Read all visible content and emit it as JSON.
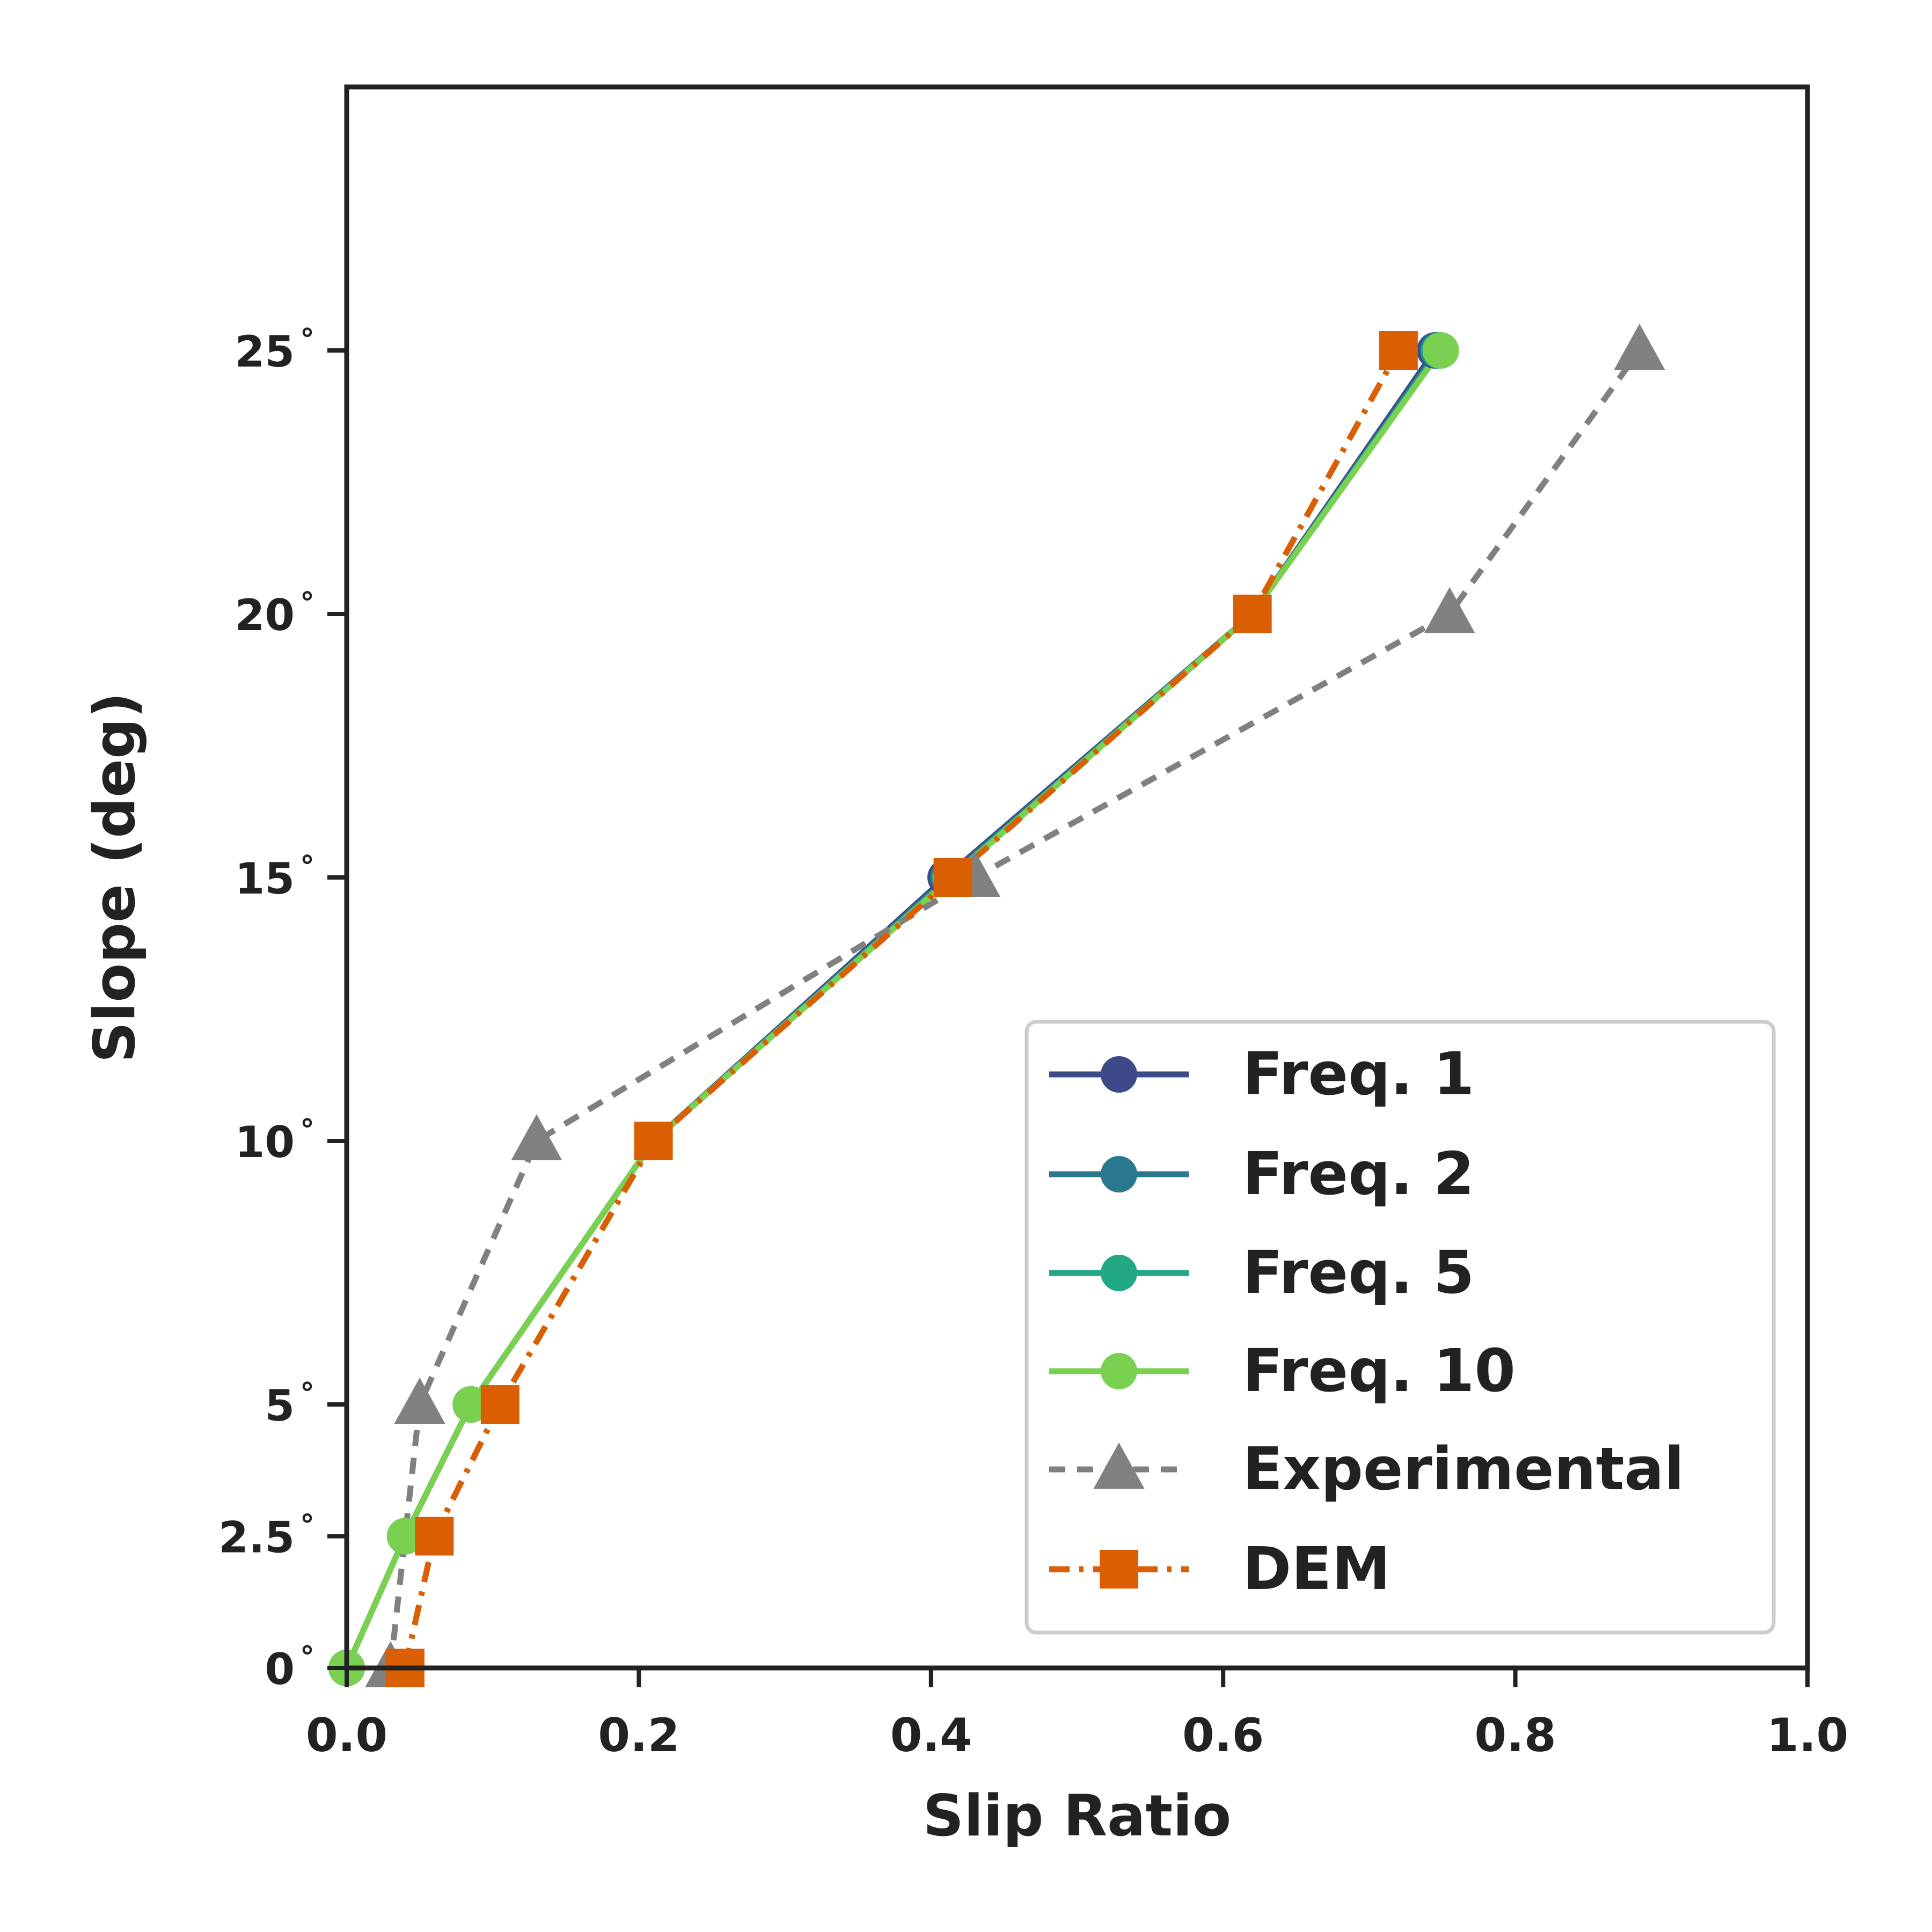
{
  "chart_data": {
    "type": "line",
    "title": "",
    "xlabel": "Slip Ratio",
    "ylabel": "Slope (deg)",
    "xlim": [
      0.0,
      1.0
    ],
    "ylim": [
      0,
      30
    ],
    "grid": false,
    "legend_position": "bottom-right",
    "x_ticks": [
      0.0,
      0.2,
      0.4,
      0.6,
      0.8,
      1.0
    ],
    "x_tick_labels": [
      "0.0",
      "0.2",
      "0.4",
      "0.6",
      "0.8",
      "1.0"
    ],
    "y_ticks": [
      0,
      2.5,
      5,
      10,
      15,
      20,
      25
    ],
    "y_tick_labels": [
      "0",
      "2.5",
      "5",
      "10",
      "15",
      "20",
      "25"
    ],
    "degree_symbol": "°",
    "series": [
      {
        "name": "Freq. 1",
        "color": "#3d4a8a",
        "marker": "circle",
        "dash": "solid",
        "x": [
          0.0,
          0.04,
          0.085,
          0.21,
          0.41,
          0.62,
          0.745
        ],
        "y": [
          0,
          2.5,
          5,
          10,
          15,
          20,
          25
        ]
      },
      {
        "name": "Freq. 2",
        "color": "#2a788e",
        "marker": "circle",
        "dash": "solid",
        "x": [
          0.0,
          0.04,
          0.085,
          0.21,
          0.412,
          0.62,
          0.747
        ],
        "y": [
          0,
          2.5,
          5,
          10,
          15,
          20,
          25
        ]
      },
      {
        "name": "Freq. 5",
        "color": "#22a884",
        "marker": "circle",
        "dash": "solid",
        "x": [
          0.0,
          0.04,
          0.085,
          0.21,
          0.413,
          0.62,
          0.748
        ],
        "y": [
          0,
          2.5,
          5,
          10,
          15,
          20,
          25
        ]
      },
      {
        "name": "Freq. 10",
        "color": "#7ad151",
        "marker": "circle",
        "dash": "solid",
        "x": [
          0.0,
          0.04,
          0.085,
          0.21,
          0.414,
          0.62,
          0.749
        ],
        "y": [
          0,
          2.5,
          5,
          10,
          15,
          20,
          25
        ]
      },
      {
        "name": "Experimental",
        "color": "#808080",
        "marker": "triangle",
        "dash": "dashed",
        "x": [
          0.03,
          0.05,
          0.13,
          0.43,
          0.755,
          0.885
        ],
        "y": [
          0,
          5,
          10,
          15,
          20,
          25
        ]
      },
      {
        "name": "DEM",
        "color": "#d95f02",
        "marker": "square",
        "dash": "dashdot",
        "x": [
          0.04,
          0.06,
          0.105,
          0.21,
          0.415,
          0.62,
          0.72
        ],
        "y": [
          0,
          2.5,
          5,
          10,
          15,
          20,
          25
        ]
      }
    ]
  }
}
